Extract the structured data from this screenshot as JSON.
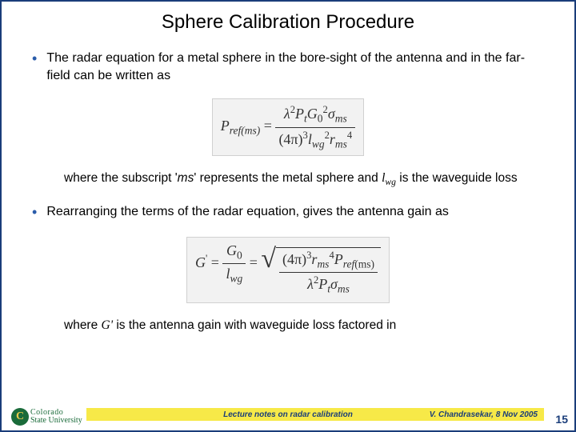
{
  "title": "Sphere Calibration Procedure",
  "bullets": {
    "b1": "The radar equation for a metal sphere in the bore-sight of the antenna and in the far-field can be written as",
    "b2": "Rearranging the terms of the radar equation, gives the antenna gain as"
  },
  "notes": {
    "n1_pre": "where the subscript '",
    "n1_ms": "ms",
    "n1_mid": "' represents the metal sphere and ",
    "n1_l": "l",
    "n1_wg": "wg",
    "n1_post": " is the waveguide loss",
    "n2_pre": "where ",
    "n2_g": "G'",
    "n2_post": " is the antenna gain with waveguide loss factored in"
  },
  "eq1": {
    "lhs_P": "P",
    "lhs_ref": "ref",
    "lhs_ms": "(ms)",
    "eq": " = ",
    "num_lambda": "λ",
    "num_sq": "2",
    "num_P": "P",
    "num_t": "t",
    "num_G": "G",
    "num_0": "0",
    "num_g2": "2",
    "num_sigma": "σ",
    "num_ms": "ms",
    "den_4pi": "(4π)",
    "den_3": "3",
    "den_l": "l",
    "den_wg": "wg",
    "den_l2": "2",
    "den_r": "r",
    "den_rms": "ms",
    "den_4": "4"
  },
  "eq2": {
    "lhs_G": "G",
    "lhs_prime": "'",
    "eq": " = ",
    "f1_num_G": "G",
    "f1_num_0": "0",
    "f1_den_l": "l",
    "f1_den_wg": "wg",
    "eq2": " = ",
    "sq_num_4pi": "(4π)",
    "sq_num_3": "3",
    "sq_num_r": "r",
    "sq_num_ms": "ms",
    "sq_num_4": "4",
    "sq_num_P": "P",
    "sq_num_ref": "ref",
    "sq_num_pms": "(ms)",
    "sq_den_lambda": "λ",
    "sq_den_2": "2",
    "sq_den_P": "P",
    "sq_den_t": "t",
    "sq_den_sigma": "σ",
    "sq_den_ms": "ms"
  },
  "footer": {
    "center": "Lecture notes on radar calibration",
    "right": "V. Chandrasekar, 8 Nov 2005",
    "page": "15",
    "logo_line1": "Colorado",
    "logo_line2": "State University"
  },
  "colors": {
    "border": "#1a3d7a",
    "bullet": "#2a5caa",
    "footer_bar": "#f7e948",
    "logo_green": "#1a6b3a",
    "eq_bg": "#f2f2f2"
  }
}
